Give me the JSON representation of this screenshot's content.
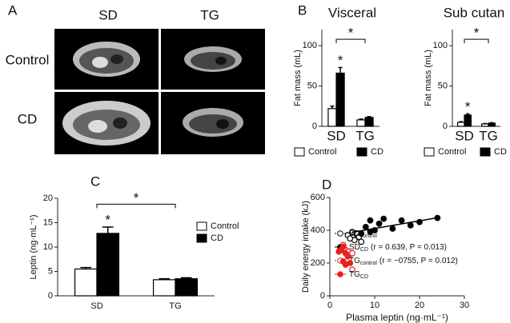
{
  "panel_a": {
    "label": "A",
    "columns": [
      "SD",
      "TG"
    ],
    "rows": [
      "Control",
      "CD"
    ]
  },
  "chart_data": [
    {
      "type": "bar",
      "panel": "B",
      "title": "Visceral",
      "ylabel": "Fat mass (mL)",
      "categories": [
        "SD",
        "TG"
      ],
      "series": [
        {
          "name": "Control",
          "color": "#ffffff",
          "values": [
            22,
            8
          ],
          "errors": [
            3,
            1
          ]
        },
        {
          "name": "CD",
          "color": "#000000",
          "values": [
            66,
            11
          ],
          "errors": [
            7,
            1
          ]
        }
      ],
      "ylim": [
        0,
        120
      ],
      "yticks": [
        0,
        50,
        100
      ],
      "annotations": [
        "*",
        "*"
      ]
    },
    {
      "type": "bar",
      "title": "Sub cutan",
      "ylabel": "Fat mass (mL)",
      "categories": [
        "SD",
        "TG"
      ],
      "series": [
        {
          "name": "Control",
          "color": "#ffffff",
          "values": [
            5,
            3
          ],
          "errors": [
            0.8,
            0.5
          ]
        },
        {
          "name": "CD",
          "color": "#000000",
          "values": [
            14,
            4
          ],
          "errors": [
            1.5,
            0.5
          ]
        }
      ],
      "ylim": [
        0,
        120
      ],
      "yticks": [
        0,
        50,
        100
      ],
      "annotations": [
        "*",
        "*"
      ]
    },
    {
      "type": "bar",
      "panel": "C",
      "ylabel": "Leptin (ng·mL⁻¹)",
      "categories": [
        "SD",
        "TG"
      ],
      "series": [
        {
          "name": "Control",
          "color": "#ffffff",
          "values": [
            5.5,
            3.3
          ],
          "errors": [
            0.3,
            0.2
          ]
        },
        {
          "name": "CD",
          "color": "#000000",
          "values": [
            12.8,
            3.5
          ],
          "errors": [
            1.3,
            0.2
          ]
        }
      ],
      "ylim": [
        0,
        20
      ],
      "yticks": [
        0,
        5,
        10,
        15,
        20
      ],
      "annotations": [
        "*",
        "*"
      ]
    },
    {
      "type": "scatter",
      "panel": "D",
      "xlabel": "Plasma leptin (ng·mL⁻¹)",
      "ylabel": "Daily energy intake (kJ)",
      "xlim": [
        0,
        30
      ],
      "xticks": [
        0,
        10,
        20,
        30
      ],
      "ylim": [
        0,
        600
      ],
      "yticks": [
        0,
        200,
        400,
        600
      ],
      "series": [
        {
          "name": "SD",
          "subscript": "control",
          "color": "#000000",
          "filled": false,
          "x": [
            4,
            5,
            5.5,
            6,
            4.5,
            7,
            5,
            6.5
          ],
          "y": [
            370,
            360,
            340,
            380,
            350,
            330,
            390,
            360
          ]
        },
        {
          "name": "SD",
          "subscript": "CD",
          "stat": "(r = 0.639, P = 0.013)",
          "color": "#000000",
          "filled": true,
          "x": [
            7,
            8,
            9,
            10,
            12,
            14,
            16,
            18,
            20,
            24,
            9,
            11
          ],
          "y": [
            380,
            420,
            460,
            400,
            470,
            410,
            460,
            430,
            450,
            475,
            390,
            440
          ],
          "fit": {
            "x": [
              5,
              24
            ],
            "y": [
              388,
              476
            ]
          }
        },
        {
          "name": "TG",
          "subscript": "control",
          "stat": "(r = −0755, P = 0.012)",
          "color": "#e8211f",
          "filled": false,
          "x": [
            3,
            3.5,
            4,
            4.5,
            5,
            5
          ],
          "y": [
            310,
            280,
            270,
            250,
            260,
            160
          ]
        },
        {
          "name": "TG",
          "subscript": "CD",
          "color": "#e8211f",
          "filled": true,
          "x": [
            2.5,
            3,
            3.5,
            4,
            3,
            4.5,
            2,
            3.5
          ],
          "y": [
            280,
            300,
            260,
            240,
            210,
            200,
            270,
            190
          ]
        }
      ]
    }
  ]
}
